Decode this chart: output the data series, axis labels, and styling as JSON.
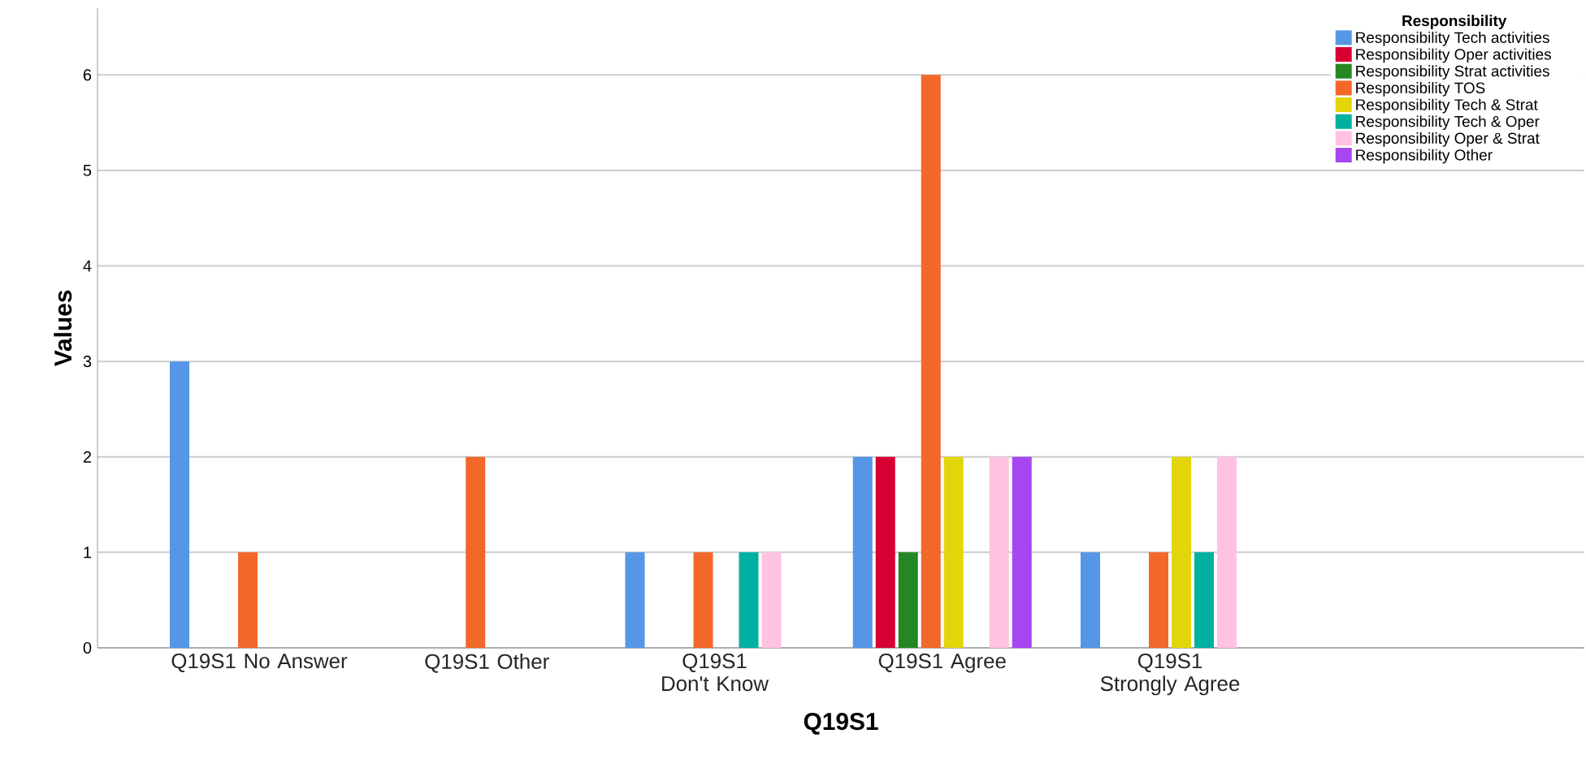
{
  "chart_data": {
    "type": "bar",
    "xlabel": "Q19S1",
    "ylabel": "Values",
    "legend_title": "Responsibility",
    "categories": [
      "Q19S1 No Answer",
      "Q19S1 Other",
      "Q19S1 Don't Know",
      "Q19S1 Agree",
      "Q19S1 Strongly Agree"
    ],
    "series": [
      {
        "name": "Responsibility Tech activities",
        "color": "#5596e6",
        "values": [
          3,
          0,
          1,
          2,
          1
        ]
      },
      {
        "name": "Responsibility Oper activities",
        "color": "#d70033",
        "values": [
          0,
          0,
          0,
          2,
          0
        ]
      },
      {
        "name": "Responsibility Strat activities",
        "color": "#248724",
        "values": [
          0,
          0,
          0,
          1,
          0
        ]
      },
      {
        "name": "Responsibility TOS",
        "color": "#f2672a",
        "values": [
          1,
          2,
          1,
          6,
          1
        ]
      },
      {
        "name": "Responsibility Tech & Strat",
        "color": "#e2d60a",
        "values": [
          0,
          0,
          0,
          2,
          2
        ]
      },
      {
        "name": "Responsibility Tech & Oper",
        "color": "#00b0a0",
        "values": [
          0,
          0,
          1,
          0,
          1
        ]
      },
      {
        "name": "Responsibility Oper & Strat",
        "color": "#ffc2e0",
        "values": [
          0,
          0,
          1,
          2,
          2
        ]
      },
      {
        "name": "Responsibility Other",
        "color": "#a846f0",
        "values": [
          0,
          0,
          0,
          2,
          0
        ]
      }
    ],
    "ylim": [
      0,
      6.7
    ],
    "yticks": [
      0,
      1,
      2,
      3,
      4,
      5,
      6
    ],
    "grid": "y",
    "legend": "top right"
  }
}
